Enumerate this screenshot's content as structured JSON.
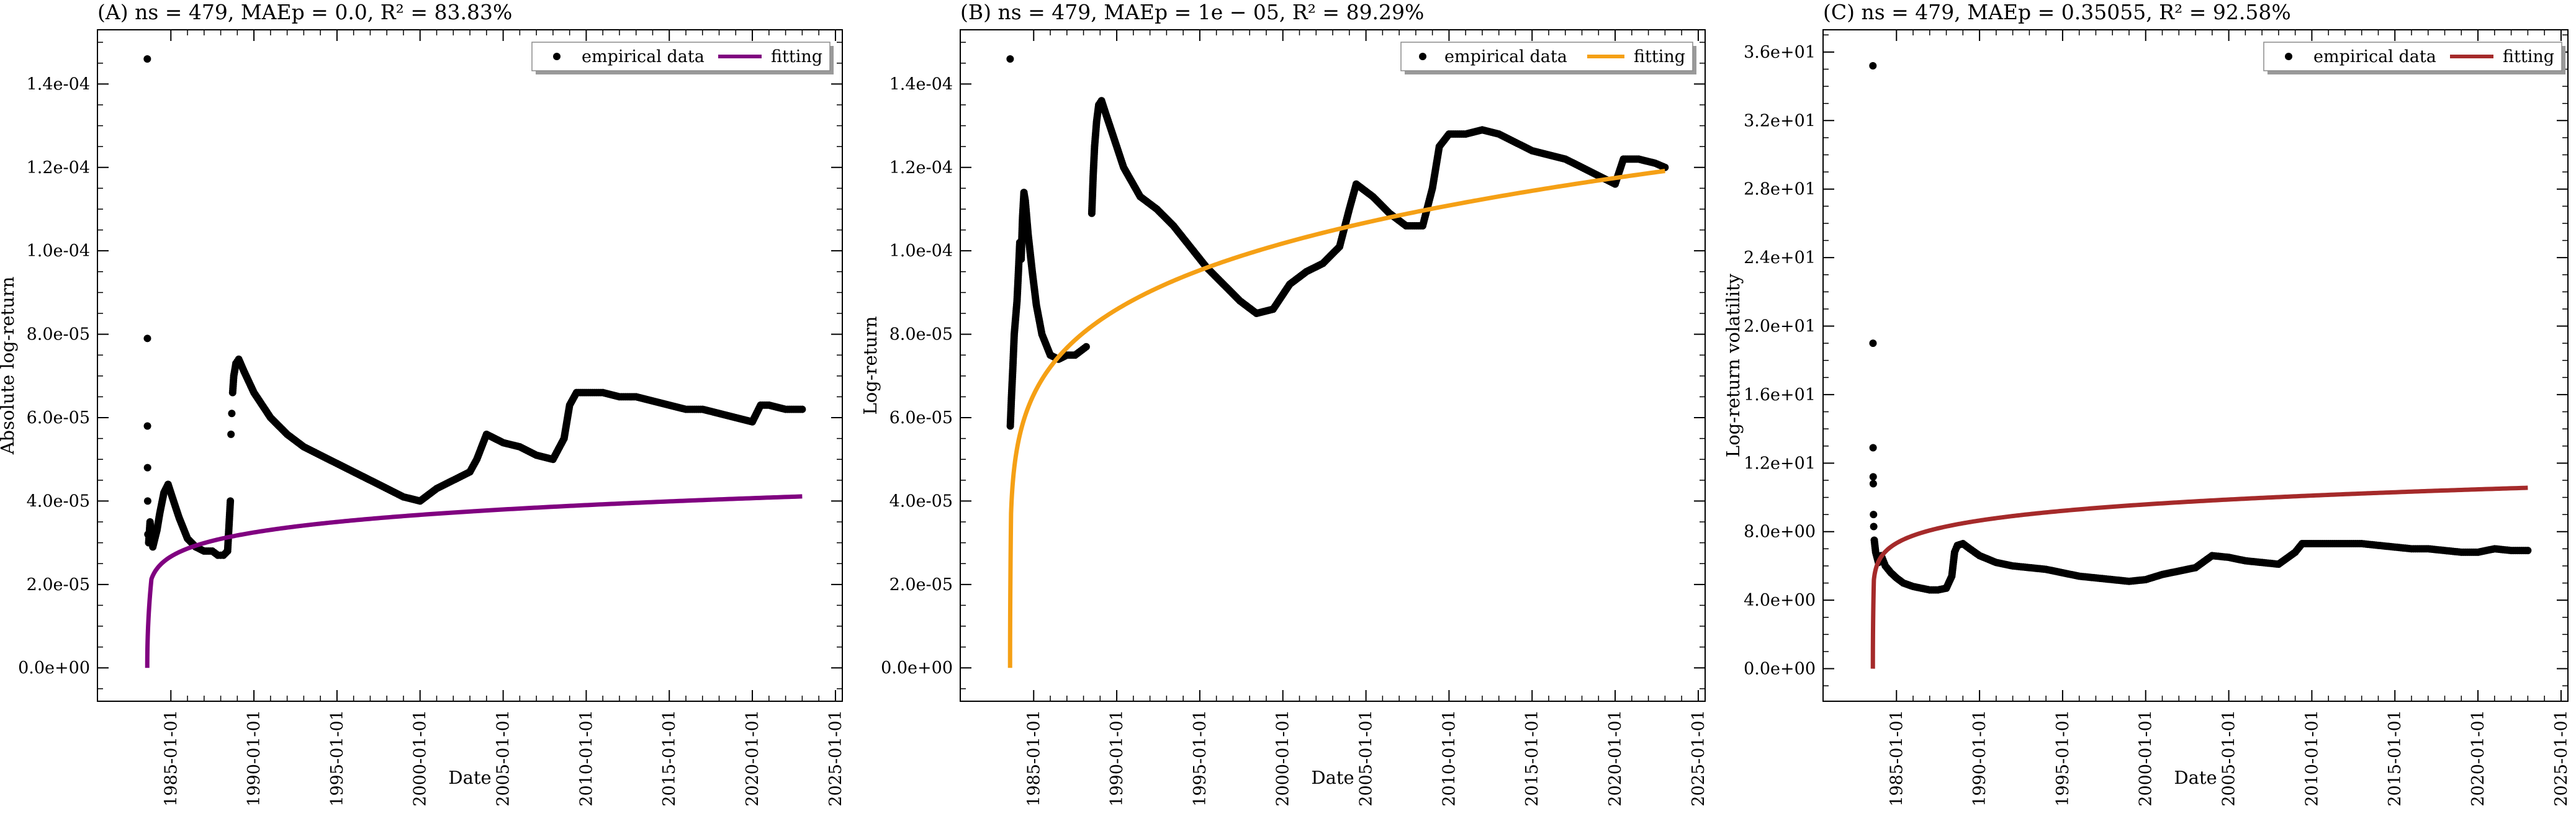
{
  "chart_data": [
    {
      "panel": "A",
      "type": "scatter",
      "title": "(A) ns = 479, MAEp = 0.0, R² = 83.83%",
      "xlabel": "Date",
      "ylabel": "Absolute log-return",
      "xticks": [
        "1985-01-01",
        "1990-01-01",
        "1995-01-01",
        "2000-01-01",
        "2005-01-01",
        "2010-01-01",
        "2015-01-01",
        "2020-01-01",
        "2025-01-01"
      ],
      "yticks": [
        0,
        2e-05,
        4e-05,
        6e-05,
        8e-05,
        0.0001,
        0.00012,
        0.00014
      ],
      "ytick_labels": [
        "0.0e+00",
        "2.0e-05",
        "4.0e-05",
        "6.0e-05",
        "8.0e-05",
        "1.0e-04",
        "1.2e-04",
        "1.4e-04"
      ],
      "xlim": [
        "1980-08-01",
        "2025-06-01"
      ],
      "ylim": [
        -8e-06,
        0.000153
      ],
      "grid": false,
      "legend": {
        "position": "top-right",
        "entries": [
          "empirical data",
          "fitting"
        ]
      },
      "fit_color": "#800080",
      "fit": {
        "start": "1983-08-01",
        "end": "2023-01-01",
        "a": 2.55e-05,
        "c": 2e-06,
        "d": 0.25,
        "p": 0.13
      },
      "empirical": [
        [
          "1983-08-02",
          0.000146
        ],
        [
          "1983-08-04",
          7.9e-05
        ],
        [
          "1983-08-05",
          5.8e-05
        ],
        [
          "1983-08-07",
          4.8e-05
        ],
        [
          "1983-08-10",
          4e-05
        ],
        [
          "1983-08-15",
          3.2e-05
        ],
        [
          "1983-09-01",
          3e-05
        ],
        [
          "1983-10-01",
          3.5e-05
        ],
        [
          "1983-12-01",
          2.9e-05
        ],
        [
          "1984-03-01",
          3.3e-05
        ],
        [
          "1984-05-01",
          3.7e-05
        ],
        [
          "1984-08-01",
          4.2e-05
        ],
        [
          "1984-11-01",
          4.4e-05
        ],
        [
          "1985-03-01",
          4e-05
        ],
        [
          "1985-07-01",
          3.6e-05
        ],
        [
          "1986-01-01",
          3.1e-05
        ],
        [
          "1986-07-01",
          2.9e-05
        ],
        [
          "1987-01-01",
          2.8e-05
        ],
        [
          "1987-07-01",
          2.8e-05
        ],
        [
          "1987-11-01",
          2.7e-05
        ],
        [
          "1988-03-01",
          2.7e-05
        ],
        [
          "1988-06-01",
          2.8e-05
        ],
        [
          "1988-08-01",
          4e-05
        ],
        [
          "1988-08-15",
          5.6e-05
        ],
        [
          "1988-09-01",
          6.1e-05
        ],
        [
          "1988-09-20",
          6.6e-05
        ],
        [
          "1988-10-15",
          7e-05
        ],
        [
          "1988-12-01",
          7.3e-05
        ],
        [
          "1989-02-01",
          7.4e-05
        ],
        [
          "1989-06-01",
          7.1e-05
        ],
        [
          "1990-01-01",
          6.6e-05
        ],
        [
          "1991-01-01",
          6e-05
        ],
        [
          "1992-01-01",
          5.6e-05
        ],
        [
          "1993-01-01",
          5.3e-05
        ],
        [
          "1994-01-01",
          5.1e-05
        ],
        [
          "1995-01-01",
          4.9e-05
        ],
        [
          "1996-01-01",
          4.7e-05
        ],
        [
          "1997-01-01",
          4.5e-05
        ],
        [
          "1998-01-01",
          4.3e-05
        ],
        [
          "1999-01-01",
          4.1e-05
        ],
        [
          "2000-01-01",
          4e-05
        ],
        [
          "2001-01-01",
          4.3e-05
        ],
        [
          "2002-01-01",
          4.5e-05
        ],
        [
          "2003-01-01",
          4.7e-05
        ],
        [
          "2003-06-01",
          5e-05
        ],
        [
          "2004-01-01",
          5.6e-05
        ],
        [
          "2005-01-01",
          5.4e-05
        ],
        [
          "2006-01-01",
          5.3e-05
        ],
        [
          "2007-01-01",
          5.1e-05
        ],
        [
          "2008-01-01",
          5e-05
        ],
        [
          "2008-09-01",
          5.5e-05
        ],
        [
          "2009-01-01",
          6.3e-05
        ],
        [
          "2009-06-01",
          6.6e-05
        ],
        [
          "2010-01-01",
          6.6e-05
        ],
        [
          "2011-01-01",
          6.6e-05
        ],
        [
          "2012-01-01",
          6.5e-05
        ],
        [
          "2013-01-01",
          6.5e-05
        ],
        [
          "2014-01-01",
          6.4e-05
        ],
        [
          "2015-01-01",
          6.3e-05
        ],
        [
          "2016-01-01",
          6.2e-05
        ],
        [
          "2017-01-01",
          6.2e-05
        ],
        [
          "2018-01-01",
          6.1e-05
        ],
        [
          "2019-01-01",
          6e-05
        ],
        [
          "2020-01-01",
          5.9e-05
        ],
        [
          "2020-07-01",
          6.3e-05
        ],
        [
          "2021-01-01",
          6.3e-05
        ],
        [
          "2022-01-01",
          6.2e-05
        ],
        [
          "2023-01-01",
          6.2e-05
        ]
      ]
    },
    {
      "panel": "B",
      "type": "scatter",
      "title": "(B) ns = 479, MAEp = 1e − 05, R² = 89.29%",
      "xlabel": "Date",
      "ylabel": "Log-return",
      "xticks": [
        "1985-01-01",
        "1990-01-01",
        "1995-01-01",
        "2000-01-01",
        "2005-01-01",
        "2010-01-01",
        "2015-01-01",
        "2020-01-01",
        "2025-01-01"
      ],
      "yticks": [
        0,
        2e-05,
        4e-05,
        6e-05,
        8e-05,
        0.0001,
        0.00012,
        0.00014
      ],
      "ytick_labels": [
        "0.0e+00",
        "2.0e-05",
        "4.0e-05",
        "6.0e-05",
        "8.0e-05",
        "1.0e-04",
        "1.2e-04",
        "1.4e-04"
      ],
      "xlim": [
        "1980-08-01",
        "2025-06-01"
      ],
      "ylim": [
        -8e-06,
        0.000153
      ],
      "grid": false,
      "legend": {
        "position": "top-right",
        "entries": [
          "empirical data",
          "fitting"
        ]
      },
      "fit_color": "#f5a015",
      "fit": {
        "start": "1983-08-01",
        "end": "2023-01-01",
        "a": 6.15e-05,
        "c": 6e-06,
        "d": 0.06,
        "p": 0.18
      },
      "empirical": [
        [
          "1983-08-03",
          0.000146
        ],
        [
          "1983-08-06",
          5.8e-05
        ],
        [
          "1983-09-01",
          6.5e-05
        ],
        [
          "1983-10-01",
          7.2e-05
        ],
        [
          "1983-11-01",
          8e-05
        ],
        [
          "1984-01-01",
          8.8e-05
        ],
        [
          "1984-02-01",
          9.5e-05
        ],
        [
          "1984-03-01",
          0.000102
        ],
        [
          "1984-04-01",
          9.8e-05
        ],
        [
          "1984-05-01",
          0.000108
        ],
        [
          "1984-06-01",
          0.000114
        ],
        [
          "1984-07-01",
          0.000112
        ],
        [
          "1984-09-01",
          0.000104
        ],
        [
          "1984-12-01",
          9.5e-05
        ],
        [
          "1985-03-01",
          8.7e-05
        ],
        [
          "1985-07-01",
          8e-05
        ],
        [
          "1986-01-01",
          7.5e-05
        ],
        [
          "1986-07-01",
          7.4e-05
        ],
        [
          "1987-01-01",
          7.5e-05
        ],
        [
          "1987-07-01",
          7.5e-05
        ],
        [
          "1987-11-01",
          7.6e-05
        ],
        [
          "1988-03-01",
          7.7e-05
        ],
        [
          "1988-07-01",
          0.000109
        ],
        [
          "1988-08-01",
          0.000118
        ],
        [
          "1988-09-01",
          0.000125
        ],
        [
          "1988-10-15",
          0.000131
        ],
        [
          "1988-12-01",
          0.000135
        ],
        [
          "1989-02-01",
          0.000136
        ],
        [
          "1989-05-01",
          0.000133
        ],
        [
          "1989-10-01",
          0.000128
        ],
        [
          "1990-06-01",
          0.00012
        ],
        [
          "1991-06-01",
          0.000113
        ],
        [
          "1992-06-01",
          0.00011
        ],
        [
          "1993-06-01",
          0.000106
        ],
        [
          "1994-06-01",
          0.000101
        ],
        [
          "1995-06-01",
          9.6e-05
        ],
        [
          "1996-06-01",
          9.2e-05
        ],
        [
          "1997-06-01",
          8.8e-05
        ],
        [
          "1998-06-01",
          8.5e-05
        ],
        [
          "1999-06-01",
          8.6e-05
        ],
        [
          "2000-06-01",
          9.2e-05
        ],
        [
          "2001-06-01",
          9.5e-05
        ],
        [
          "2002-06-01",
          9.7e-05
        ],
        [
          "2003-06-01",
          0.000101
        ],
        [
          "2004-01-01",
          0.00011
        ],
        [
          "2004-06-01",
          0.000116
        ],
        [
          "2005-06-01",
          0.000113
        ],
        [
          "2006-06-01",
          0.000109
        ],
        [
          "2007-06-01",
          0.000106
        ],
        [
          "2008-06-01",
          0.000106
        ],
        [
          "2009-01-01",
          0.000115
        ],
        [
          "2009-06-01",
          0.000125
        ],
        [
          "2010-01-01",
          0.000128
        ],
        [
          "2011-01-01",
          0.000128
        ],
        [
          "2012-01-01",
          0.000129
        ],
        [
          "2013-01-01",
          0.000128
        ],
        [
          "2014-01-01",
          0.000126
        ],
        [
          "2015-01-01",
          0.000124
        ],
        [
          "2016-01-01",
          0.000123
        ],
        [
          "2017-01-01",
          0.000122
        ],
        [
          "2018-01-01",
          0.00012
        ],
        [
          "2019-01-01",
          0.000118
        ],
        [
          "2020-01-01",
          0.000116
        ],
        [
          "2020-07-01",
          0.000122
        ],
        [
          "2021-06-01",
          0.000122
        ],
        [
          "2022-06-01",
          0.000121
        ],
        [
          "2023-01-01",
          0.00012
        ]
      ]
    },
    {
      "panel": "C",
      "type": "scatter",
      "title": "(C) ns = 479, MAEp = 0.35055, R² = 92.58%",
      "xlabel": "Date",
      "ylabel": "Log-return volatility",
      "xticks": [
        "1985-01-01",
        "1990-01-01",
        "1995-01-01",
        "2000-01-01",
        "2005-01-01",
        "2010-01-01",
        "2015-01-01",
        "2020-01-01",
        "2025-01-01"
      ],
      "yticks": [
        0,
        4,
        8,
        12,
        16,
        20,
        24,
        28,
        32,
        36
      ],
      "ytick_labels": [
        "0.0e+00",
        "4.0e+00",
        "8.0e+00",
        "1.2e+01",
        "1.6e+01",
        "2.0e+01",
        "2.4e+01",
        "2.8e+01",
        "3.2e+01",
        "3.6e+01"
      ],
      "xlim": [
        "1980-08-01",
        "2025-06-01"
      ],
      "ylim": [
        -1.9,
        37.3
      ],
      "grid": false,
      "legend": {
        "position": "top-right",
        "entries": [
          "empirical data",
          "fitting"
        ]
      },
      "fit_color": "#a52a2a",
      "fit": {
        "start": "1983-08-01",
        "end": "2023-01-01",
        "a": 4.7,
        "c": 0.5,
        "d": 0.06,
        "p": 0.11
      },
      "empirical": [
        [
          "1983-08-02",
          35.2
        ],
        [
          "1983-08-04",
          19.0
        ],
        [
          "1983-08-06",
          12.9
        ],
        [
          "1983-08-08",
          11.2
        ],
        [
          "1983-08-10",
          10.8
        ],
        [
          "1983-08-15",
          9.0
        ],
        [
          "1983-08-20",
          8.3
        ],
        [
          "1983-09-01",
          7.5
        ],
        [
          "1983-10-01",
          6.8
        ],
        [
          "1983-12-01",
          6.2
        ],
        [
          "1984-02-01",
          6.6
        ],
        [
          "1984-05-01",
          6.0
        ],
        [
          "1984-09-01",
          5.6
        ],
        [
          "1985-01-01",
          5.3
        ],
        [
          "1985-06-01",
          5.0
        ],
        [
          "1986-01-01",
          4.8
        ],
        [
          "1986-07-01",
          4.7
        ],
        [
          "1987-01-01",
          4.6
        ],
        [
          "1987-07-01",
          4.6
        ],
        [
          "1988-01-01",
          4.7
        ],
        [
          "1988-05-01",
          5.4
        ],
        [
          "1988-07-01",
          6.8
        ],
        [
          "1988-09-01",
          7.2
        ],
        [
          "1989-01-01",
          7.3
        ],
        [
          "1989-06-01",
          7.0
        ],
        [
          "1990-01-01",
          6.6
        ],
        [
          "1991-01-01",
          6.2
        ],
        [
          "1992-01-01",
          6.0
        ],
        [
          "1993-01-01",
          5.9
        ],
        [
          "1994-01-01",
          5.8
        ],
        [
          "1995-01-01",
          5.6
        ],
        [
          "1996-01-01",
          5.4
        ],
        [
          "1997-01-01",
          5.3
        ],
        [
          "1998-01-01",
          5.2
        ],
        [
          "1999-01-01",
          5.1
        ],
        [
          "2000-01-01",
          5.2
        ],
        [
          "2001-01-01",
          5.5
        ],
        [
          "2002-01-01",
          5.7
        ],
        [
          "2003-01-01",
          5.9
        ],
        [
          "2004-01-01",
          6.6
        ],
        [
          "2005-01-01",
          6.5
        ],
        [
          "2006-01-01",
          6.3
        ],
        [
          "2007-01-01",
          6.2
        ],
        [
          "2008-01-01",
          6.1
        ],
        [
          "2009-01-01",
          6.8
        ],
        [
          "2009-06-01",
          7.3
        ],
        [
          "2010-01-01",
          7.3
        ],
        [
          "2011-01-01",
          7.3
        ],
        [
          "2012-01-01",
          7.3
        ],
        [
          "2013-01-01",
          7.3
        ],
        [
          "2014-01-01",
          7.2
        ],
        [
          "2015-01-01",
          7.1
        ],
        [
          "2016-01-01",
          7.0
        ],
        [
          "2017-01-01",
          7.0
        ],
        [
          "2018-01-01",
          6.9
        ],
        [
          "2019-01-01",
          6.8
        ],
        [
          "2020-01-01",
          6.8
        ],
        [
          "2021-01-01",
          7.0
        ],
        [
          "2022-01-01",
          6.9
        ],
        [
          "2023-01-01",
          6.9
        ]
      ]
    }
  ]
}
